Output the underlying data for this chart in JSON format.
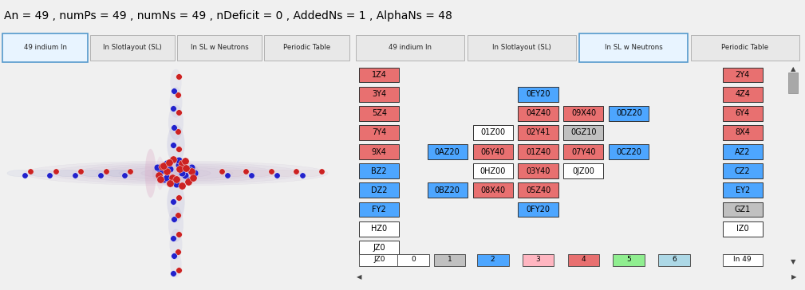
{
  "title_text": "An = 49 , numPs = 49 , numNs = 49 , nDeficit = 0 , AddedNs = 1 , AlphaNs = 48",
  "title_color": "#000000",
  "title_fontsize": 10,
  "bg_color": "#f0f0f0",
  "left_panel": {
    "tabs": [
      "49 indium In",
      "In Slotlayout (SL)",
      "In SL w Neutrons",
      "Periodic Table"
    ],
    "active_tab": 0
  },
  "right_panel": {
    "tabs": [
      "49 indium In",
      "In Slotlayout (SL)",
      "In SL w Neutrons",
      "Periodic Table"
    ],
    "active_tab": 2
  },
  "cells": [
    {
      "label": "1Z4",
      "col": 0,
      "row": 0,
      "color": "#e87070"
    },
    {
      "label": "3Y4",
      "col": 0,
      "row": 1,
      "color": "#e87070"
    },
    {
      "label": "5Z4",
      "col": 0,
      "row": 2,
      "color": "#e87070"
    },
    {
      "label": "7Y4",
      "col": 0,
      "row": 3,
      "color": "#e87070"
    },
    {
      "label": "9X4",
      "col": 0,
      "row": 4,
      "color": "#e87070"
    },
    {
      "label": "BZ2",
      "col": 0,
      "row": 5,
      "color": "#4da6ff"
    },
    {
      "label": "DZ2",
      "col": 0,
      "row": 6,
      "color": "#4da6ff"
    },
    {
      "label": "FY2",
      "col": 0,
      "row": 7,
      "color": "#4da6ff"
    },
    {
      "label": "HZ0",
      "col": 0,
      "row": 8,
      "color": "#ffffff"
    },
    {
      "label": "JZ0",
      "col": 0,
      "row": 9,
      "color": "#ffffff"
    },
    {
      "label": "0EY20",
      "col": 3,
      "row": 1,
      "color": "#4da6ff"
    },
    {
      "label": "04Z40",
      "col": 3,
      "row": 2,
      "color": "#e87070"
    },
    {
      "label": "09X40",
      "col": 4,
      "row": 2,
      "color": "#e87070"
    },
    {
      "label": "0DZ20",
      "col": 5,
      "row": 2,
      "color": "#4da6ff"
    },
    {
      "label": "01Z00",
      "col": 2,
      "row": 3,
      "color": "#ffffff"
    },
    {
      "label": "02Y41",
      "col": 3,
      "row": 3,
      "color": "#e87070"
    },
    {
      "label": "0GZ10",
      "col": 4,
      "row": 3,
      "color": "#c0c0c0"
    },
    {
      "label": "0AZ20",
      "col": 1,
      "row": 4,
      "color": "#4da6ff"
    },
    {
      "label": "06Y40",
      "col": 2,
      "row": 4,
      "color": "#e87070"
    },
    {
      "label": "01Z40",
      "col": 3,
      "row": 4,
      "color": "#e87070"
    },
    {
      "label": "07Y40",
      "col": 4,
      "row": 4,
      "color": "#e87070"
    },
    {
      "label": "0CZ20",
      "col": 5,
      "row": 4,
      "color": "#4da6ff"
    },
    {
      "label": "0HZ00",
      "col": 2,
      "row": 5,
      "color": "#ffffff"
    },
    {
      "label": "03Y40",
      "col": 3,
      "row": 5,
      "color": "#e87070"
    },
    {
      "label": "0JZ00",
      "col": 4,
      "row": 5,
      "color": "#ffffff"
    },
    {
      "label": "0BZ20",
      "col": 1,
      "row": 6,
      "color": "#4da6ff"
    },
    {
      "label": "08X40",
      "col": 2,
      "row": 6,
      "color": "#e87070"
    },
    {
      "label": "05Z40",
      "col": 3,
      "row": 6,
      "color": "#e87070"
    },
    {
      "label": "0FY20",
      "col": 3,
      "row": 7,
      "color": "#4da6ff"
    },
    {
      "label": "2Y4",
      "col": 7,
      "row": 0,
      "color": "#e87070"
    },
    {
      "label": "4Z4",
      "col": 7,
      "row": 1,
      "color": "#e87070"
    },
    {
      "label": "6Y4",
      "col": 7,
      "row": 2,
      "color": "#e87070"
    },
    {
      "label": "8X4",
      "col": 7,
      "row": 3,
      "color": "#e87070"
    },
    {
      "label": "AZ2",
      "col": 7,
      "row": 4,
      "color": "#4da6ff"
    },
    {
      "label": "CZ2",
      "col": 7,
      "row": 5,
      "color": "#4da6ff"
    },
    {
      "label": "EY2",
      "col": 7,
      "row": 6,
      "color": "#4da6ff"
    },
    {
      "label": "GZ1",
      "col": 7,
      "row": 7,
      "color": "#c0c0c0"
    },
    {
      "label": "IZ0",
      "col": 7,
      "row": 8,
      "color": "#ffffff"
    }
  ],
  "bottom_row": [
    {
      "label": "JZ0",
      "color": "#ffffff"
    },
    {
      "label": "0",
      "color": "#ffffff"
    },
    {
      "label": "1",
      "color": "#c0c0c0"
    },
    {
      "label": "2",
      "color": "#4da6ff"
    },
    {
      "label": "3",
      "color": "#ffb6c1"
    },
    {
      "label": "4",
      "color": "#e87070"
    },
    {
      "label": "5",
      "color": "#90ee90"
    },
    {
      "label": "6",
      "color": "#add8e6"
    },
    {
      "label": "In 49",
      "color": "#ffffff"
    }
  ]
}
